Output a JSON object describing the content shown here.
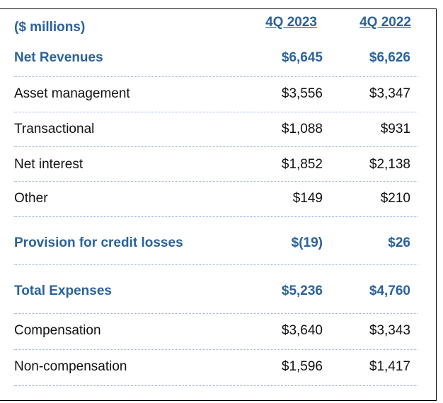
{
  "table": {
    "header": {
      "label": "($ millions)",
      "columns": [
        "4Q 2023",
        "4Q 2022"
      ]
    },
    "rows": [
      {
        "label": "Net Revenues",
        "values": [
          "$6,645",
          "$6,626"
        ],
        "highlight": true
      },
      {
        "label": "Asset management",
        "values": [
          "$3,556",
          "$3,347"
        ],
        "highlight": false
      },
      {
        "label": "Transactional",
        "values": [
          "$1,088",
          "$931"
        ],
        "highlight": false
      },
      {
        "label": "Net interest",
        "values": [
          "$1,852",
          "$2,138"
        ],
        "highlight": false
      },
      {
        "label": "Other",
        "values": [
          "$149",
          "$210"
        ],
        "highlight": false
      },
      {
        "label": "Provision for credit losses",
        "values": [
          "$(19)",
          "$26"
        ],
        "highlight": true
      },
      {
        "label": "Total Expenses",
        "values": [
          "$5,236",
          "$4,760"
        ],
        "highlight": true
      },
      {
        "label": "Compensation",
        "values": [
          "$3,640",
          "$3,343"
        ],
        "highlight": false
      },
      {
        "label": "Non-compensation",
        "values": [
          "$1,596",
          "$1,417"
        ],
        "highlight": false
      }
    ]
  }
}
